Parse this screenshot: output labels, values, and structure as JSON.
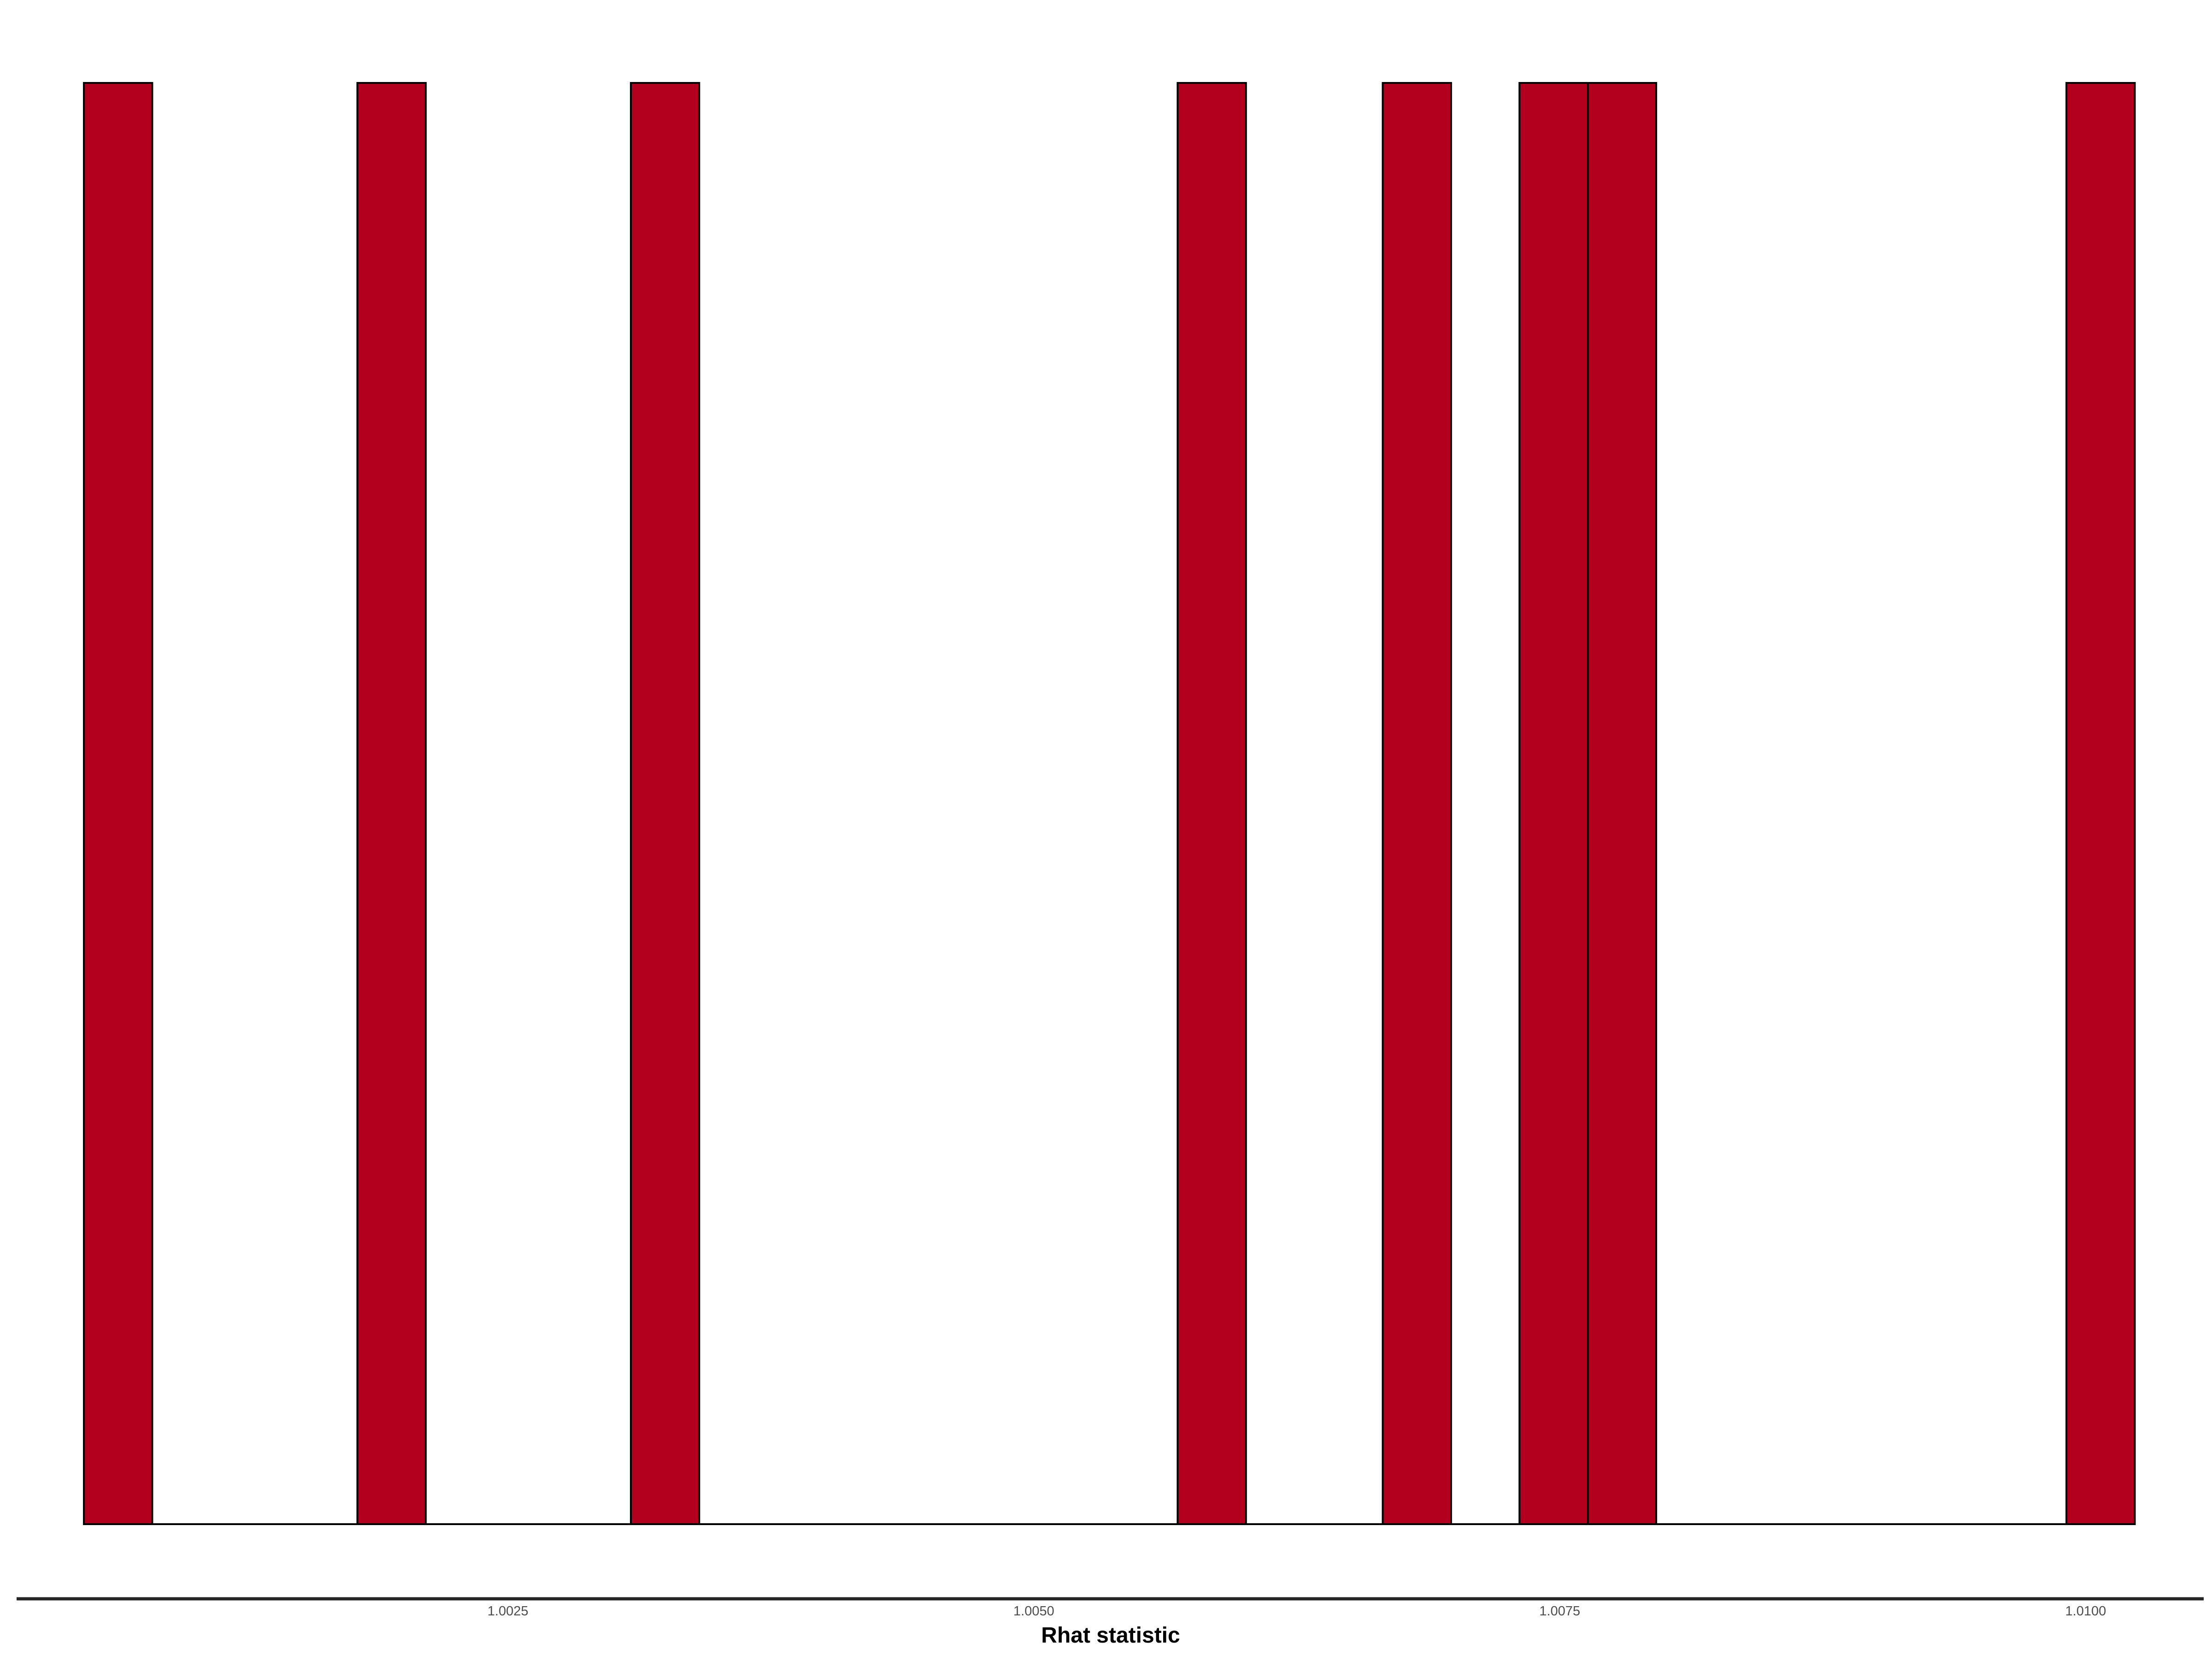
{
  "chart_data": {
    "type": "bar",
    "title": "",
    "xlabel": "Rhat statistic",
    "ylabel": "",
    "x_ticks": [
      1.0025,
      1.005,
      1.0075,
      1.01
    ],
    "x_tick_labels": [
      "1.0025",
      "1.0050",
      "1.0075",
      "1.0100"
    ],
    "xlim": [
      1.00048,
      1.01025
    ],
    "bin_width": 0.000325,
    "bins": [
      {
        "center": 1.000647,
        "count": 1
      },
      {
        "center": 1.001947,
        "count": 1
      },
      {
        "center": 1.003247,
        "count": 1
      },
      {
        "center": 1.005846,
        "count": 1
      },
      {
        "center": 1.006821,
        "count": 1
      },
      {
        "center": 1.007471,
        "count": 1
      },
      {
        "center": 1.007796,
        "count": 1
      },
      {
        "center": 1.010071,
        "count": 1
      }
    ],
    "ylim": [
      0,
      1
    ],
    "grid": false,
    "legend": "none",
    "colors": {
      "bar_fill": "#b2001e",
      "bar_outline": "#000000",
      "axis_line": "#262626"
    }
  }
}
